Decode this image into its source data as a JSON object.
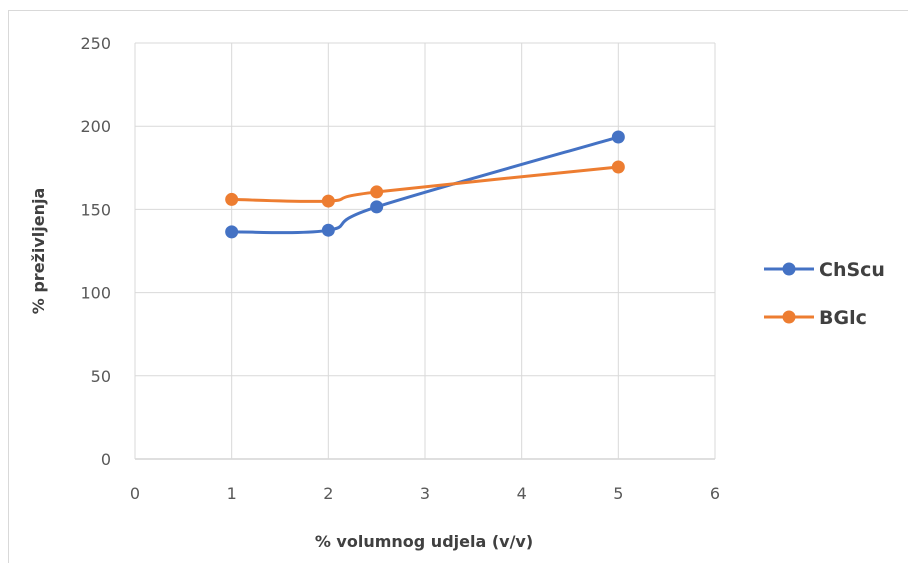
{
  "chart_data": {
    "type": "line",
    "title": "",
    "xlabel": "% volumnog udjela (v/v)",
    "ylabel": "% preživljenja",
    "xlim": [
      0,
      6
    ],
    "ylim": [
      0,
      250
    ],
    "xticks": [
      0,
      1,
      2,
      3,
      4,
      5,
      6
    ],
    "yticks": [
      0,
      50,
      100,
      150,
      200,
      250
    ],
    "grid": true,
    "legend_position": "right",
    "smooth": true,
    "series": [
      {
        "name": "ChScu",
        "color": "#4472C4",
        "x": [
          1,
          2,
          2.5,
          5
        ],
        "y": [
          136.5,
          137.5,
          151.5,
          193.5
        ]
      },
      {
        "name": "BGlc",
        "color": "#ED7D31",
        "x": [
          1,
          2,
          2.5,
          5
        ],
        "y": [
          156,
          155,
          160.5,
          175.5
        ]
      }
    ]
  }
}
